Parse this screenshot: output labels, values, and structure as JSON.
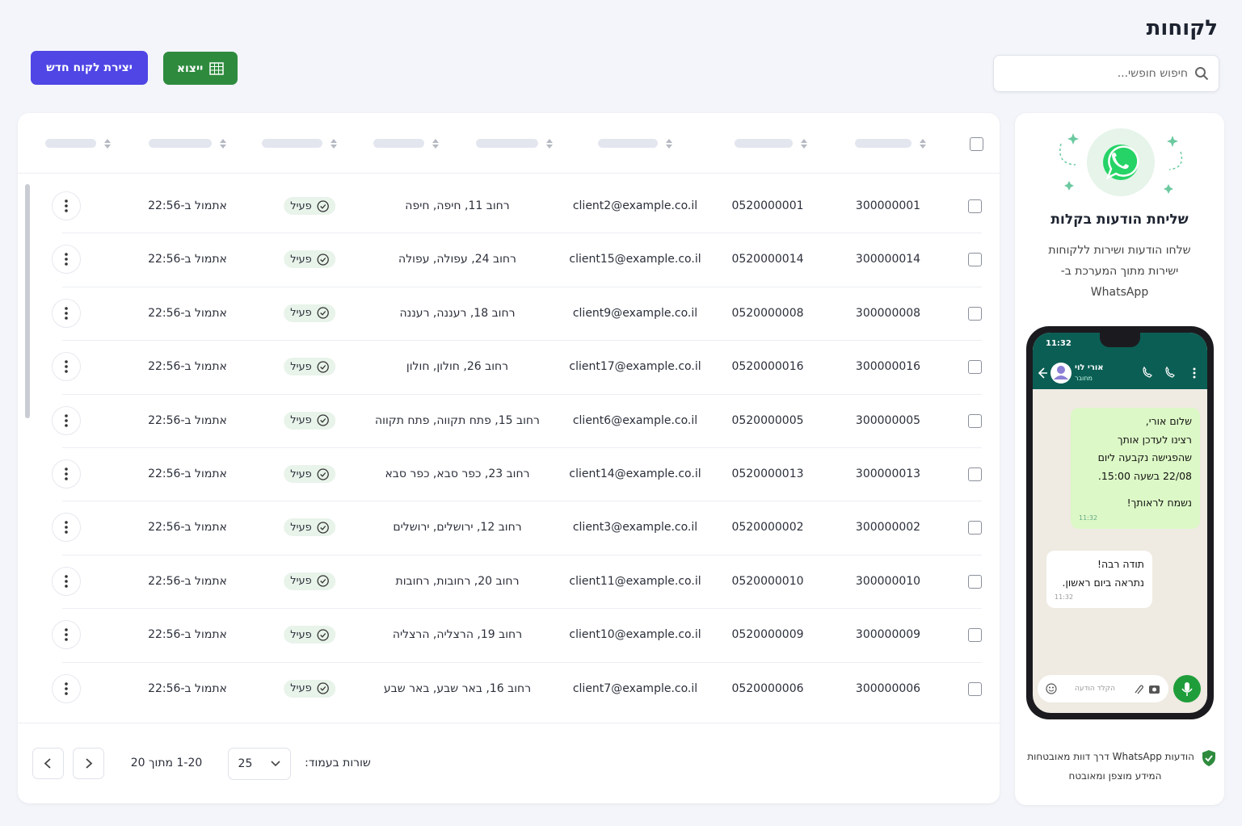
{
  "header": {
    "title": "לקוחות",
    "search_placeholder": "חיפוש חופשי...",
    "export_button": "ייצוא",
    "create_button": "יצירת לקוח חדש"
  },
  "table": {
    "rows": [
      [
        "300000001",
        "0520000001",
        "client2@example.co.il",
        "רחוב 11, חיפה, חיפה",
        "פעיל",
        "אתמול ב-22:56"
      ],
      [
        "300000014",
        "0520000014",
        "client15@example.co.il",
        "רחוב 24, עפולה, עפולה",
        "פעיל",
        "אתמול ב-22:56"
      ],
      [
        "300000008",
        "0520000008",
        "client9@example.co.il",
        "רחוב 18, רעננה, רעננה",
        "פעיל",
        "אתמול ב-22:56"
      ],
      [
        "300000016",
        "0520000016",
        "client17@example.co.il",
        "רחוב 26, חולון, חולון",
        "פעיל",
        "אתמול ב-22:56"
      ],
      [
        "300000005",
        "0520000005",
        "client6@example.co.il",
        "רחוב 15, פתח תקווה, פתח תקווה",
        "פעיל",
        "אתמול ב-22:56"
      ],
      [
        "300000013",
        "0520000013",
        "client14@example.co.il",
        "רחוב 23, כפר סבא, כפר סבא",
        "פעיל",
        "אתמול ב-22:56"
      ],
      [
        "300000002",
        "0520000002",
        "client3@example.co.il",
        "רחוב 12, ירושלים, ירושלים",
        "פעיל",
        "אתמול ב-22:56"
      ],
      [
        "300000010",
        "0520000010",
        "client11@example.co.il",
        "רחוב 20, רחובות, רחובות",
        "פעיל",
        "אתמול ב-22:56"
      ],
      [
        "300000009",
        "0520000009",
        "client10@example.co.il",
        "רחוב 19, הרצליה, הרצליה",
        "פעיל",
        "אתמול ב-22:56"
      ],
      [
        "300000006",
        "0520000006",
        "client7@example.co.il",
        "רחוב 16, באר שבע, באר שבע",
        "פעיל",
        "אתמול ב-22:56"
      ]
    ]
  },
  "pagination": {
    "rows_per_page_label": "שורות בעמוד:",
    "rows_per_page": "25",
    "range": "1-20 מתוך 20"
  },
  "promo": {
    "title": "שליחת הודעות בקלות",
    "description": "שלחו הודעות ושירות ללקוחות ישירות מתוך המערכת ב-WhatsApp",
    "phone": {
      "clock": "11:32",
      "contact_name": "אורי לוי",
      "contact_status": "מחובר",
      "outgoing": {
        "lines": [
          "שלום אורי,",
          "רצינו לעדכן אותך",
          "שהפגישה נקבעה ליום",
          "22/08 בשעה 15:00.",
          "נשמח לראותך!"
        ],
        "time": "11:32"
      },
      "incoming": {
        "lines": [
          "תודה רבה!",
          "נתראה ביום ראשון."
        ],
        "time": "11:32"
      },
      "input_placeholder": "הקלד הודעה"
    },
    "footer": [
      "הודעות WhatsApp דרך דוות מאובטחות",
      "המידע מוצפן ומאובטח"
    ]
  }
}
